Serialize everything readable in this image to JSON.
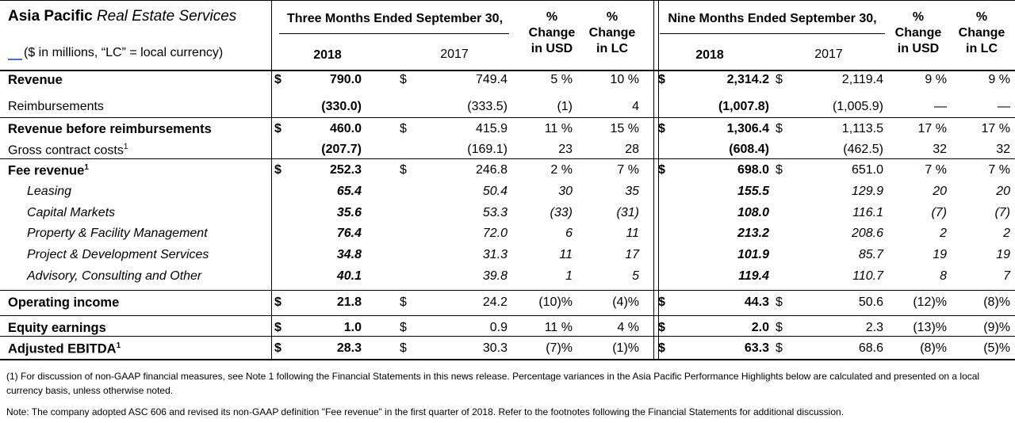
{
  "title": {
    "bold": "Asia Pacific",
    "italic": "Real Estate Services"
  },
  "subtitle": "($ in millions, “LC” = local currency)",
  "headers": {
    "three_months": "Three Months Ended September 30,",
    "nine_months": "Nine Months Ended September 30,",
    "year_2018": "2018",
    "year_2017": "2017",
    "pct_change_usd": [
      "%",
      "Change",
      "in USD"
    ],
    "pct_change_lc": [
      "%",
      "Change",
      "in LC"
    ]
  },
  "rows": [
    {
      "label": "Revenue",
      "sup": "",
      "style": "bold",
      "sign": "$",
      "q2018": "790.0",
      "q2017": "749.4",
      "q_usd": "5 %",
      "q_lc": "10 %",
      "n2018": "2,314.2",
      "n2017": "2,119.4",
      "n_usd": "9 %",
      "n_lc": "9 %"
    },
    {
      "label": "Reimbursements",
      "sup": "",
      "style": "normal",
      "sign": "",
      "q2018": "(330.0)",
      "q2017": "(333.5)",
      "q_usd": "(1)",
      "q_lc": "4",
      "n2018": "(1,007.8)",
      "n2017": "(1,005.9)",
      "n_usd": "—",
      "n_lc": "—"
    },
    {
      "label": "Revenue before reimbursements",
      "sup": "",
      "style": "bold",
      "sign": "$",
      "q2018": "460.0",
      "q2017": "415.9",
      "q_usd": "11 %",
      "q_lc": "15 %",
      "n2018": "1,306.4",
      "n2017": "1,113.5",
      "n_usd": "17 %",
      "n_lc": "17 %"
    },
    {
      "label": "Gross contract costs",
      "sup": "1",
      "style": "normal",
      "sign": "",
      "q2018": "(207.7)",
      "q2017": "(169.1)",
      "q_usd": "23",
      "q_lc": "28",
      "n2018": "(608.4)",
      "n2017": "(462.5)",
      "n_usd": "32",
      "n_lc": "32"
    },
    {
      "label": "Fee revenue",
      "sup": "1",
      "style": "bold",
      "sign": "$",
      "q2018": "252.3",
      "q2017": "246.8",
      "q_usd": "2 %",
      "q_lc": "7 %",
      "n2018": "698.0",
      "n2017": "651.0",
      "n_usd": "7 %",
      "n_lc": "7 %"
    },
    {
      "label": "Leasing",
      "sup": "",
      "style": "italic",
      "sign": "",
      "q2018": "65.4",
      "q2017": "50.4",
      "q_usd": "30",
      "q_lc": "35",
      "n2018": "155.5",
      "n2017": "129.9",
      "n_usd": "20",
      "n_lc": "20"
    },
    {
      "label": "Capital Markets",
      "sup": "",
      "style": "italic",
      "sign": "",
      "q2018": "35.6",
      "q2017": "53.3",
      "q_usd": "(33)",
      "q_lc": "(31)",
      "n2018": "108.0",
      "n2017": "116.1",
      "n_usd": "(7)",
      "n_lc": "(7)"
    },
    {
      "label": "Property & Facility Management",
      "sup": "",
      "style": "italic",
      "sign": "",
      "q2018": "76.4",
      "q2017": "72.0",
      "q_usd": "6",
      "q_lc": "11",
      "n2018": "213.2",
      "n2017": "208.6",
      "n_usd": "2",
      "n_lc": "2"
    },
    {
      "label": "Project & Development Services",
      "sup": "",
      "style": "italic",
      "sign": "",
      "q2018": "34.8",
      "q2017": "31.3",
      "q_usd": "11",
      "q_lc": "17",
      "n2018": "101.9",
      "n2017": "85.7",
      "n_usd": "19",
      "n_lc": "19"
    },
    {
      "label": "Advisory, Consulting and Other",
      "sup": "",
      "style": "italic",
      "sign": "",
      "q2018": "40.1",
      "q2017": "39.8",
      "q_usd": "1",
      "q_lc": "5",
      "n2018": "119.4",
      "n2017": "110.7",
      "n_usd": "8",
      "n_lc": "7"
    },
    {
      "label": "Operating income",
      "sup": "",
      "style": "bold",
      "sign": "$",
      "q2018": "21.8",
      "q2017": "24.2",
      "q_usd": "(10)%",
      "q_lc": "(4)%",
      "n2018": "44.3",
      "n2017": "50.6",
      "n_usd": "(12)%",
      "n_lc": "(8)%"
    },
    {
      "label": "Equity earnings",
      "sup": "",
      "style": "bold",
      "sign": "$",
      "q2018": "1.0",
      "q2017": "0.9",
      "q_usd": "11 %",
      "q_lc": "4 %",
      "n2018": "2.0",
      "n2017": "2.3",
      "n_usd": "(13)%",
      "n_lc": "(9)%"
    },
    {
      "label": "Adjusted EBITDA",
      "sup": "1",
      "style": "bold",
      "sign": "$",
      "q2018": "28.3",
      "q2017": "30.3",
      "q_usd": "(7)%",
      "q_lc": "(1)%",
      "n2018": "63.3",
      "n2017": "68.6",
      "n_usd": "(8)%",
      "n_lc": "(5)%"
    }
  ],
  "footnotes": [
    "(1) For discussion of non-GAAP financial measures, see Note 1 following the Financial Statements in this news release. Percentage variances in the Asia Pacific Performance Highlights below are calculated and presented on a local currency basis, unless otherwise noted.",
    "Note: The company adopted ASC 606 and revised its non-GAAP definition \"Fee revenue\" in the first quarter of 2018. Refer to the footnotes following the Financial Statements for additional discussion."
  ]
}
